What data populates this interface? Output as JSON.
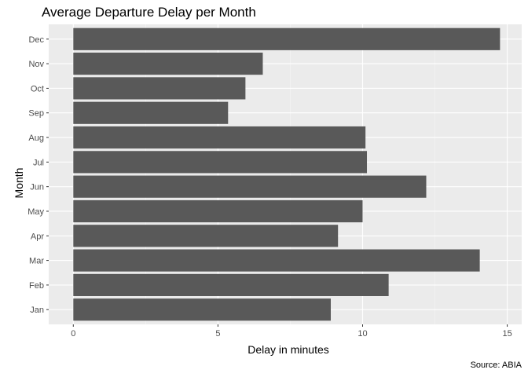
{
  "chart_data": {
    "type": "bar",
    "orientation": "horizontal",
    "title": "Average Departure Delay per Month",
    "xlabel": "Delay in minutes",
    "ylabel": "Month",
    "caption": "Source: ABIA",
    "categories": [
      "Jan",
      "Feb",
      "Mar",
      "Apr",
      "May",
      "Jun",
      "Jul",
      "Aug",
      "Sep",
      "Oct",
      "Nov",
      "Dec"
    ],
    "values": [
      8.9,
      10.9,
      14.05,
      9.15,
      10.0,
      12.2,
      10.15,
      10.1,
      5.35,
      5.95,
      6.55,
      14.75
    ],
    "xlim": [
      -0.85,
      15.5
    ],
    "xticks": [
      0,
      5,
      10,
      15
    ],
    "grid": true,
    "colors": {
      "bar": "#595959",
      "panel": "#ebebeb",
      "grid_major": "#ffffff",
      "grid_minor": "#f5f5f5"
    }
  }
}
